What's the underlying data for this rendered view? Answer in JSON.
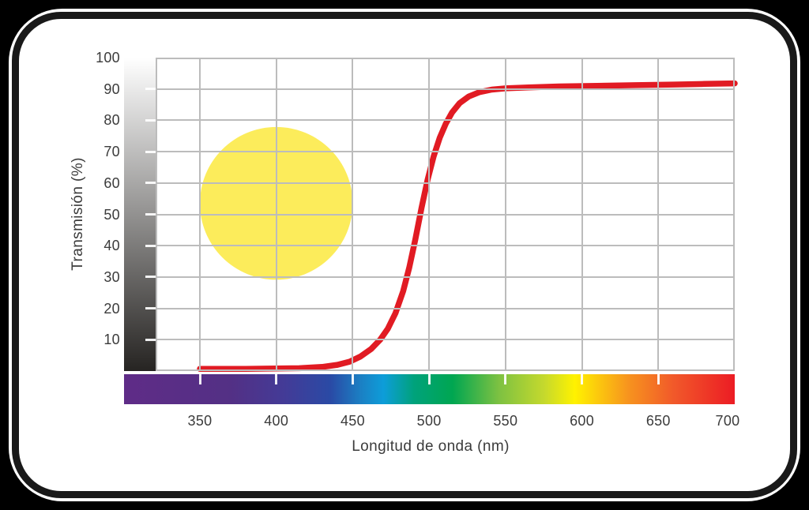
{
  "page": {
    "background_color": "#000000",
    "card": {
      "fill": "#ffffff",
      "border_color": "#191919"
    }
  },
  "chart_data": {
    "type": "line",
    "title": "",
    "xlabel": "Longitud de onda (nm)",
    "ylabel": "Transmisión (%)",
    "x_ticks": [
      350,
      400,
      450,
      500,
      550,
      600,
      650,
      700
    ],
    "y_ticks": [
      10,
      20,
      30,
      40,
      50,
      60,
      70,
      80,
      90,
      100
    ],
    "xlim": [
      320,
      700
    ],
    "ylim": [
      0,
      100
    ],
    "grid": true,
    "grid_color": "#bcbcbc",
    "tick_mark_color": "#ffffff",
    "label_color": "#3b3b3b",
    "series": [
      {
        "name": "transmission-curve",
        "color": "#e11b23",
        "points": [
          [
            350,
            0.7
          ],
          [
            380,
            0.7
          ],
          [
            400,
            0.8
          ],
          [
            415,
            0.9
          ],
          [
            430,
            1.3
          ],
          [
            440,
            2.0
          ],
          [
            448,
            3.0
          ],
          [
            455,
            4.6
          ],
          [
            462,
            7.0
          ],
          [
            468,
            10.0
          ],
          [
            473,
            13.5
          ],
          [
            478,
            18.5
          ],
          [
            483,
            25.5
          ],
          [
            487,
            33.0
          ],
          [
            491,
            42.0
          ],
          [
            495,
            52.0
          ],
          [
            499,
            61.0
          ],
          [
            503,
            68.5
          ],
          [
            507,
            74.5
          ],
          [
            511,
            79.0
          ],
          [
            515,
            82.5
          ],
          [
            520,
            85.5
          ],
          [
            526,
            87.6
          ],
          [
            533,
            89.0
          ],
          [
            541,
            89.8
          ],
          [
            550,
            90.2
          ],
          [
            565,
            90.5
          ],
          [
            585,
            90.8
          ],
          [
            610,
            91.0
          ],
          [
            635,
            91.2
          ],
          [
            660,
            91.4
          ],
          [
            680,
            91.6
          ],
          [
            700,
            91.8
          ]
        ]
      }
    ],
    "annotations": {
      "filter_color_swatch": {
        "shape": "circle",
        "center_nm": 400,
        "center_percent": 53.5,
        "radius_nm": 50,
        "color": "#fcec5b"
      },
      "x_axis_spectrum_bar": {
        "range_nm": [
          300,
          700
        ],
        "stops": [
          {
            "nm": 300,
            "color": "#5f2c87"
          },
          {
            "nm": 370,
            "color": "#533085"
          },
          {
            "nm": 405,
            "color": "#433b97"
          },
          {
            "nm": 435,
            "color": "#2a4aa5"
          },
          {
            "nm": 455,
            "color": "#1b80c4"
          },
          {
            "nm": 470,
            "color": "#0d9dd9"
          },
          {
            "nm": 490,
            "color": "#00a27b"
          },
          {
            "nm": 515,
            "color": "#00a651"
          },
          {
            "nm": 545,
            "color": "#7cc142"
          },
          {
            "nm": 575,
            "color": "#c5d92d"
          },
          {
            "nm": 595,
            "color": "#fff200"
          },
          {
            "nm": 630,
            "color": "#f7941e"
          },
          {
            "nm": 660,
            "color": "#f1592a"
          },
          {
            "nm": 700,
            "color": "#ec1c24"
          }
        ]
      },
      "y_axis_grayscale_bar": {
        "top_color": "#ffffff",
        "bottom_color": "#262422"
      }
    }
  }
}
